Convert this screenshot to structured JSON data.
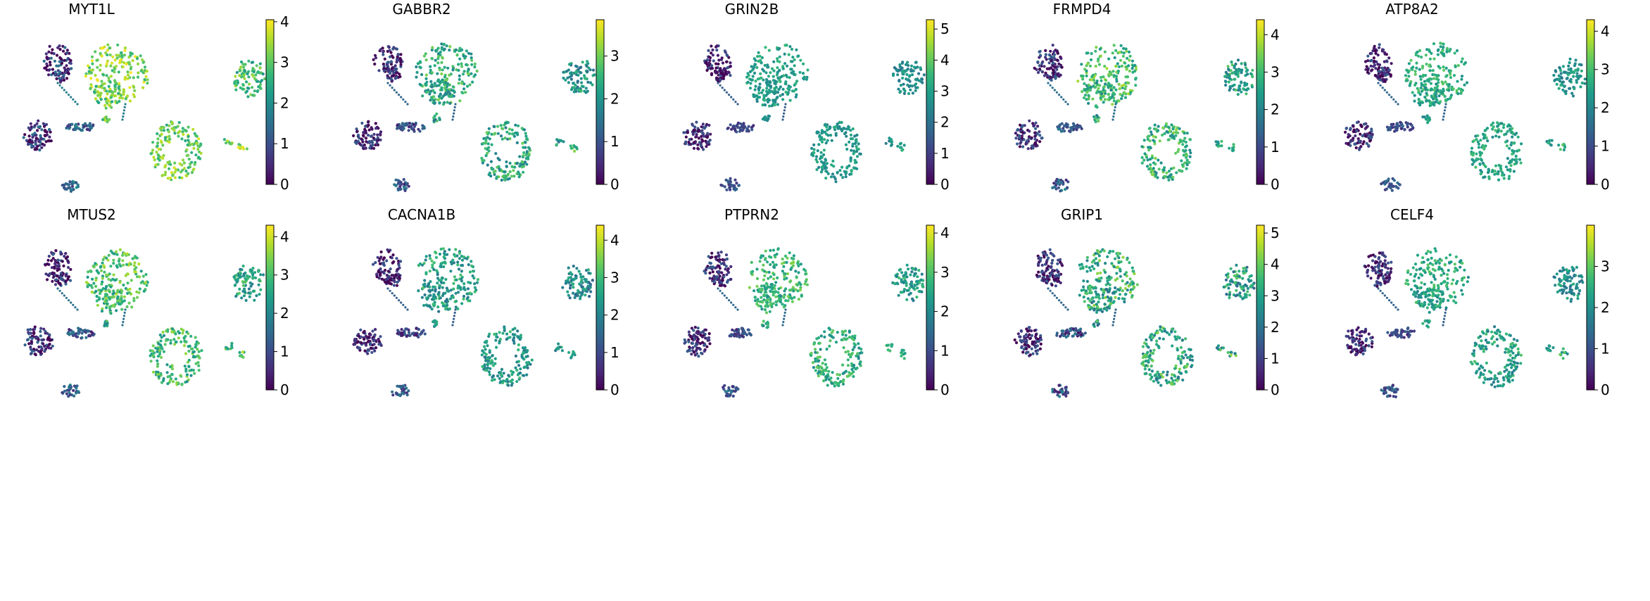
{
  "figure": {
    "description_type": "scatter",
    "colormap": "viridis",
    "colormap_stops": [
      "#440154",
      "#482878",
      "#3e4989",
      "#31688e",
      "#26828e",
      "#1f9e89",
      "#35b779",
      "#6ece58",
      "#b5de2b",
      "#fde725"
    ]
  },
  "chart_data": [
    {
      "type": "scatter",
      "title": "MYT1L",
      "colorbar": {
        "min": 0,
        "max": 4.05,
        "ticks": [
          "0",
          "1",
          "2",
          "3",
          "4"
        ]
      },
      "level": 0.72,
      "var": 0.18
    },
    {
      "type": "scatter",
      "title": "GABBR2",
      "colorbar": {
        "min": 0,
        "max": 3.85,
        "ticks": [
          "0",
          "1",
          "2",
          "3"
        ]
      },
      "level": 0.55,
      "var": 0.18
    },
    {
      "type": "scatter",
      "title": "GRIN2B",
      "colorbar": {
        "min": 0,
        "max": 5.3,
        "ticks": [
          "0",
          "1",
          "2",
          "3",
          "4",
          "5"
        ]
      },
      "level": 0.5,
      "var": 0.1
    },
    {
      "type": "scatter",
      "title": "FRMPD4",
      "colorbar": {
        "min": 0,
        "max": 4.4,
        "ticks": [
          "0",
          "1",
          "2",
          "3",
          "4"
        ]
      },
      "level": 0.6,
      "var": 0.18
    },
    {
      "type": "scatter",
      "title": "ATP8A2",
      "colorbar": {
        "min": 0,
        "max": 4.3,
        "ticks": [
          "0",
          "1",
          "2",
          "3",
          "4"
        ]
      },
      "level": 0.55,
      "var": 0.12
    },
    {
      "type": "scatter",
      "title": "MTUS2",
      "colorbar": {
        "min": 0,
        "max": 4.3,
        "ticks": [
          "0",
          "1",
          "2",
          "3",
          "4"
        ]
      },
      "level": 0.62,
      "var": 0.18
    },
    {
      "type": "scatter",
      "title": "CACNA1B",
      "colorbar": {
        "min": 0,
        "max": 4.4,
        "ticks": [
          "0",
          "1",
          "2",
          "3",
          "4"
        ]
      },
      "level": 0.5,
      "var": 0.16
    },
    {
      "type": "scatter",
      "title": "PTPRN2",
      "colorbar": {
        "min": 0,
        "max": 4.2,
        "ticks": [
          "0",
          "1",
          "2",
          "3",
          "4"
        ]
      },
      "level": 0.58,
      "var": 0.15
    },
    {
      "type": "scatter",
      "title": "GRIP1",
      "colorbar": {
        "min": 0,
        "max": 5.25,
        "ticks": [
          "0",
          "1",
          "2",
          "3",
          "4",
          "5"
        ]
      },
      "level": 0.55,
      "var": 0.22
    },
    {
      "type": "scatter",
      "title": "CELF4",
      "colorbar": {
        "min": 0,
        "max": 4.0,
        "ticks": [
          "0",
          "1",
          "2",
          "3"
        ]
      },
      "level": 0.52,
      "var": 0.15
    }
  ]
}
